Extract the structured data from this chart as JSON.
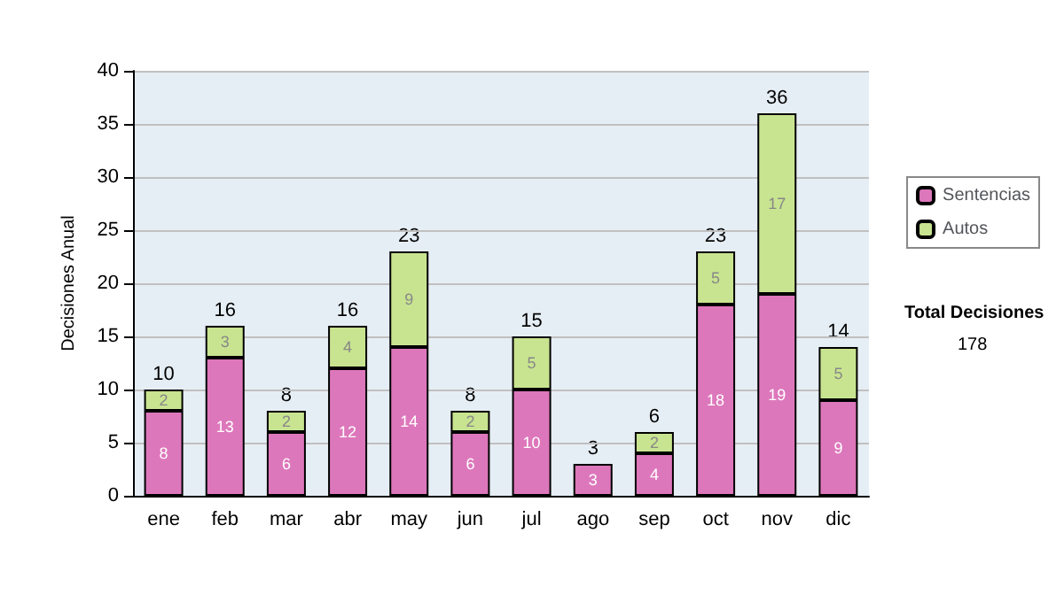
{
  "chart_data": {
    "type": "bar",
    "stacked": true,
    "ylabel": "Decisiones Anual",
    "categories": [
      "ene",
      "feb",
      "mar",
      "abr",
      "may",
      "jun",
      "jul",
      "ago",
      "sep",
      "oct",
      "nov",
      "dic"
    ],
    "series": [
      {
        "name": "Sentencias",
        "color": "#dd77bb",
        "values": [
          8,
          13,
          6,
          12,
          14,
          6,
          10,
          3,
          4,
          18,
          19,
          9
        ]
      },
      {
        "name": "Autos",
        "color": "#c8e490",
        "values": [
          2,
          3,
          2,
          4,
          9,
          2,
          5,
          null,
          2,
          5,
          17,
          5
        ]
      }
    ],
    "totals": [
      "10",
      "16",
      "8",
      "16",
      "23",
      "8",
      "15",
      "3",
      "6",
      "23",
      "36",
      "14"
    ],
    "data_labels": true,
    "ylim": [
      0,
      40
    ],
    "yticks": [
      0,
      5,
      10,
      15,
      20,
      25,
      30,
      35,
      40
    ],
    "grid": "y",
    "legend": "right",
    "annotations": [
      "Total Decisiones",
      "178"
    ]
  }
}
